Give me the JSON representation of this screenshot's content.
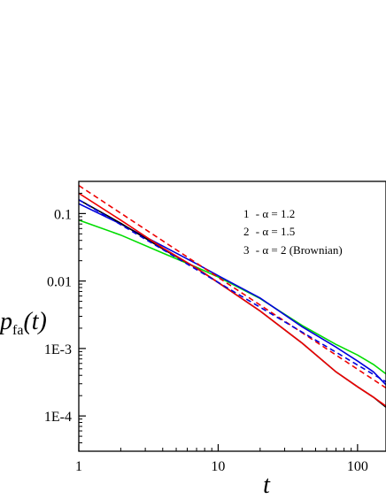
{
  "chart_data": {
    "type": "line",
    "x_scale": "log",
    "y_scale": "log",
    "xlim": [
      1,
      160
    ],
    "ylim": [
      3e-05,
      0.3
    ],
    "xlabel": "t",
    "ylabel_main": "p",
    "ylabel_sub": "fa",
    "ylabel_arg": "(t)",
    "x_ticks": [
      {
        "value": 1,
        "label": "1"
      },
      {
        "value": 10,
        "label": "10"
      },
      {
        "value": 100,
        "label": "100"
      }
    ],
    "y_ticks": [
      {
        "value": 0.1,
        "label": "0.1"
      },
      {
        "value": 0.01,
        "label": "0.01"
      },
      {
        "value": 0.001,
        "label": "1E-3"
      },
      {
        "value": 0.0001,
        "label": "1E-4"
      }
    ],
    "legend_position": "top-right",
    "legend": [
      {
        "number": "1",
        "text": "- α = 1.2"
      },
      {
        "number": "2",
        "text": "- α = 1.5"
      },
      {
        "number": "3",
        "text": "- α = 2 (Brownian)"
      }
    ],
    "series": [
      {
        "color": "#00dd00",
        "dash": false,
        "points": [
          [
            1,
            0.08
          ],
          [
            2,
            0.048
          ],
          [
            4,
            0.026
          ],
          [
            7,
            0.016
          ],
          [
            10,
            0.0115
          ],
          [
            20,
            0.0055
          ],
          [
            40,
            0.0022
          ],
          [
            70,
            0.00115
          ],
          [
            100,
            0.0008
          ],
          [
            130,
            0.00058
          ],
          [
            160,
            0.00042
          ]
        ]
      },
      {
        "color": "#0000dd",
        "dash": false,
        "points": [
          [
            1,
            0.14
          ],
          [
            2,
            0.07
          ],
          [
            4,
            0.033
          ],
          [
            7,
            0.018
          ],
          [
            10,
            0.012
          ],
          [
            20,
            0.0056
          ],
          [
            40,
            0.0021
          ],
          [
            70,
            0.00105
          ],
          [
            100,
            0.00065
          ],
          [
            130,
            0.00045
          ],
          [
            160,
            0.00029
          ]
        ]
      },
      {
        "color": "#000000",
        "dash": false,
        "points": [
          [
            1,
            0.16
          ],
          [
            2,
            0.072
          ],
          [
            4,
            0.03
          ],
          [
            7,
            0.0155
          ],
          [
            10,
            0.0095
          ],
          [
            20,
            0.0036
          ],
          [
            40,
            0.0012
          ],
          [
            70,
            0.00045
          ],
          [
            100,
            0.00027
          ],
          [
            130,
            0.00019
          ],
          [
            160,
            0.000135
          ]
        ]
      },
      {
        "color": "#ee0000",
        "dash": false,
        "points": [
          [
            1,
            0.2
          ],
          [
            2,
            0.08
          ],
          [
            4,
            0.031
          ],
          [
            7,
            0.0155
          ],
          [
            10,
            0.0095
          ],
          [
            20,
            0.0036
          ],
          [
            40,
            0.0012
          ],
          [
            70,
            0.00045
          ],
          [
            100,
            0.00027
          ],
          [
            130,
            0.00019
          ],
          [
            160,
            0.00014
          ]
        ]
      },
      {
        "color": "#ee0000",
        "dash": true,
        "points": [
          [
            1,
            0.26
          ],
          [
            160,
            0.00026
          ]
        ]
      },
      {
        "color": "#0000dd",
        "dash": true,
        "points": [
          [
            1,
            0.16
          ],
          [
            160,
            0.00032
          ]
        ]
      }
    ]
  }
}
